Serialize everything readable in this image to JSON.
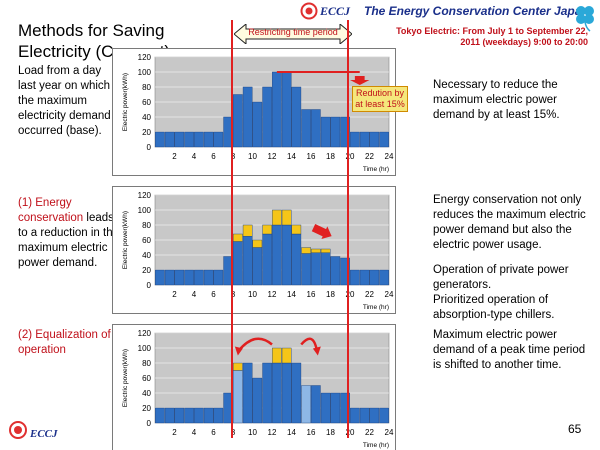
{
  "header": {
    "logo_text": "ECCJ",
    "organization": "The Energy Conservation Center Japan"
  },
  "title": "Methods for Saving Electricity (Concept)",
  "period_label": "Restricting time period",
  "tepco_note": "Tokyo Electric: From July 1 to September 22, 2011 (weekdays) 9:00 to 20:00",
  "sections": [
    {
      "left_text": "Load from a day last year on which the maximum electricity demand occurred (base).",
      "right_text": "Necessary to reduce the maximum electric power demand by at least 15%.",
      "callout": "Redution by at least 15%"
    },
    {
      "left_prefix": "(1) Energy conservation",
      "left_suffix": " leads to a reduction in the maximum electric power demand.",
      "right_text": "Energy conservation not only reduces the maximum electric power demand but also the electric power usage.",
      "right_text_2": "Operation of private power generators.",
      "right_text_3": "Prioritized operation of absorption-type chillers."
    },
    {
      "left_text": "(2) Equalization of operation",
      "right_text": "Maximum electric power demand of a peak time period is shifted to another time."
    }
  ],
  "footer": {
    "logo_text": "ECCJ",
    "page_number": "65"
  },
  "colors": {
    "bar_blue": "#2f6fc2",
    "bar_light_blue": "#8eb7e6",
    "bar_yellow": "#f5c518",
    "plot_bg": "#c8c8c8",
    "restrict_line": "#e02020",
    "accent_red": "#c0101a"
  },
  "chart_data": [
    {
      "type": "bar",
      "ylabel": "Electric power(kWh)",
      "xlabel": "Time (hr)",
      "ylim": [
        0,
        120
      ],
      "yticks": [
        0,
        20,
        40,
        60,
        80,
        100,
        120
      ],
      "xticks": [
        2,
        4,
        6,
        8,
        10,
        12,
        14,
        16,
        18,
        20,
        22,
        24
      ],
      "grid": true,
      "x": [
        1,
        2,
        3,
        4,
        5,
        6,
        7,
        8,
        9,
        10,
        11,
        12,
        13,
        14,
        15,
        16,
        17,
        18,
        19,
        20,
        21,
        22,
        23,
        24
      ],
      "series": [
        {
          "values": [
            20,
            20,
            20,
            20,
            20,
            20,
            20,
            40,
            70,
            80,
            60,
            80,
            100,
            100,
            80,
            50,
            50,
            40,
            40,
            40,
            20,
            20,
            20,
            20
          ]
        }
      ],
      "annotations": [
        "Redution by at least 15%"
      ]
    },
    {
      "type": "bar",
      "ylabel": "Electric power(kWh)",
      "xlabel": "Time (hr)",
      "ylim": [
        0,
        120
      ],
      "yticks": [
        0,
        20,
        40,
        60,
        80,
        100,
        120
      ],
      "xticks": [
        2,
        4,
        6,
        8,
        10,
        12,
        14,
        16,
        18,
        20,
        22,
        24
      ],
      "grid": true,
      "x": [
        1,
        2,
        3,
        4,
        5,
        6,
        7,
        8,
        9,
        10,
        11,
        12,
        13,
        14,
        15,
        16,
        17,
        18,
        19,
        20,
        21,
        22,
        23,
        24
      ],
      "stacked": true,
      "series": [
        {
          "values": [
            20,
            20,
            20,
            20,
            20,
            20,
            20,
            38,
            58,
            65,
            50,
            68,
            80,
            80,
            68,
            42,
            43,
            43,
            38,
            36,
            20,
            20,
            20,
            20
          ]
        },
        {
          "values": [
            0,
            0,
            0,
            0,
            0,
            0,
            0,
            0,
            10,
            15,
            10,
            12,
            20,
            20,
            12,
            8,
            5,
            5,
            0,
            0,
            0,
            0,
            0,
            0
          ]
        }
      ]
    },
    {
      "type": "bar",
      "ylabel": "Electric power(kWh)",
      "xlabel": "Time (hr)",
      "ylim": [
        0,
        120
      ],
      "yticks": [
        0,
        20,
        40,
        60,
        80,
        100,
        120
      ],
      "xticks": [
        2,
        4,
        6,
        8,
        10,
        12,
        14,
        16,
        18,
        20,
        22,
        24
      ],
      "grid": true,
      "x": [
        1,
        2,
        3,
        4,
        5,
        6,
        7,
        8,
        9,
        10,
        11,
        12,
        13,
        14,
        15,
        16,
        17,
        18,
        19,
        20,
        21,
        22,
        23,
        24
      ],
      "stacked": true,
      "series": [
        {
          "values": [
            20,
            20,
            20,
            20,
            20,
            20,
            20,
            40,
            70,
            80,
            60,
            80,
            80,
            80,
            80,
            50,
            50,
            40,
            40,
            40,
            20,
            20,
            20,
            20
          ]
        },
        {
          "values": [
            0,
            0,
            0,
            0,
            0,
            0,
            0,
            0,
            10,
            0,
            0,
            0,
            20,
            20,
            0,
            0,
            0,
            0,
            0,
            0,
            0,
            0,
            0,
            0
          ]
        }
      ],
      "series_colors": [
        "bar_blue",
        "bar_yellow"
      ],
      "light_blue_hours": [
        9,
        16
      ]
    }
  ]
}
